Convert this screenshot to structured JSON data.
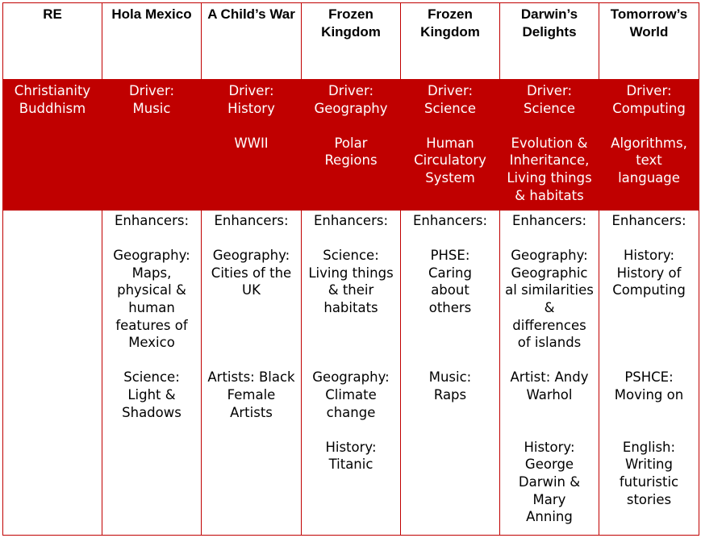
{
  "headers": [
    "RE",
    "Hola Mexico",
    "A Child’s War",
    "Frozen Kingdom",
    "Frozen Kingdom",
    "Darwin’s Delights",
    "Tomorrow’s World"
  ],
  "drivers": [
    {
      "lines": [
        "Christianity",
        "Buddhism"
      ]
    },
    {
      "lines": [
        "Driver:",
        "Music"
      ]
    },
    {
      "lines": [
        "Driver:",
        "History",
        "",
        "WWII"
      ]
    },
    {
      "lines": [
        "Driver:",
        "Geography",
        "",
        "Polar",
        "Regions"
      ]
    },
    {
      "lines": [
        "Driver:",
        "Science",
        "",
        "Human",
        "Circulatory",
        "System"
      ]
    },
    {
      "lines": [
        "Driver:",
        "Science",
        "",
        "Evolution &",
        "Inheritance,",
        "Living things",
        "& habitats"
      ]
    },
    {
      "lines": [
        "Driver:",
        "Computing",
        "",
        "Algorithms,",
        "text",
        "language"
      ]
    }
  ],
  "enhancers": [
    {
      "lines": []
    },
    {
      "lines": [
        "Enhancers:",
        "",
        "Geography:",
        "Maps,",
        "physical &",
        "human",
        "features of",
        "Mexico",
        "",
        "Science:",
        "Light &",
        "Shadows"
      ]
    },
    {
      "lines": [
        "Enhancers:",
        "",
        "Geography:",
        "Cities of the",
        "UK",
        "",
        "",
        "",
        "",
        "Artists: Black",
        "Female",
        "Artists"
      ]
    },
    {
      "lines": [
        "Enhancers:",
        "",
        "Science:",
        "Living things",
        "& their",
        "habitats",
        "",
        "",
        "",
        "Geography:",
        "Climate",
        "change",
        "",
        "History:",
        "Titanic"
      ]
    },
    {
      "lines": [
        "Enhancers:",
        "",
        "PHSE:",
        "Caring",
        "about",
        "others",
        "",
        "",
        "",
        "Music:",
        "Raps"
      ]
    },
    {
      "lines": [
        "Enhancers:",
        "",
        "Geography:",
        "Geographic",
        "al similarities",
        "&",
        "differences",
        "of islands",
        "",
        "Artist: Andy",
        "Warhol",
        "",
        "",
        "History:",
        "George",
        "Darwin &",
        "Mary",
        "Anning"
      ]
    },
    {
      "lines": [
        "Enhancers:",
        "",
        "History:",
        "History of",
        "Computing",
        "",
        "",
        "",
        "",
        "PSHCE:",
        "Moving on",
        "",
        "",
        "English:",
        "Writing",
        "futuristic",
        "stories"
      ]
    }
  ],
  "colors": {
    "accent": "#c00000",
    "text": "#000000",
    "inverse_text": "#ffffff"
  }
}
